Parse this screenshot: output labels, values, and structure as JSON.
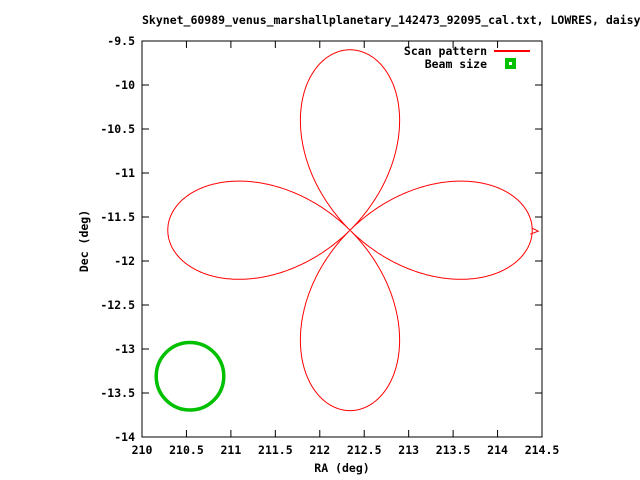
{
  "title": "Skynet_60989_venus_marshallplanetary_142473_92095_cal.txt, LOWRES, daisy",
  "legend": {
    "items": [
      {
        "label": "Scan pattern",
        "sample": "line",
        "color": "#ff0000"
      },
      {
        "label": "Beam size",
        "sample": "square-dot",
        "color": "#00c000"
      }
    ]
  },
  "colors": {
    "frame": "#000000",
    "background": "#ffffff",
    "scan": "#ff0000",
    "beam": "#00c000"
  },
  "chart_data": {
    "type": "line",
    "title": "Skynet_60989_venus_marshallplanetary_142473_92095_cal.txt, LOWRES, daisy",
    "xlabel": "RA (deg)",
    "ylabel": "Dec (deg)",
    "xlim": [
      210,
      214.5
    ],
    "ylim": [
      -14,
      -9.5
    ],
    "xticks": [
      "210",
      "210.5",
      "211",
      "211.5",
      "212",
      "212.5",
      "213",
      "213.5",
      "214",
      "214.5"
    ],
    "yticks": [
      "-9.5",
      "-10",
      "-10.5",
      "-11",
      "-11.5",
      "-12",
      "-12.5",
      "-13",
      "-13.5",
      "-14"
    ],
    "grid": false,
    "legend_position": "top-right-inside",
    "series": [
      {
        "name": "Scan pattern",
        "style": "line",
        "color": "#ff0000",
        "pattern": "rose",
        "num_petals": 4,
        "petal_angles_deg": [
          0,
          90,
          180,
          270
        ],
        "center_ra": 212.34,
        "center_dec": -11.65,
        "petal_radius_deg": 2.05,
        "start_notch": true
      },
      {
        "name": "Beam size",
        "style": "outline",
        "shape": "circle",
        "color": "#00c000",
        "center_ra": 210.54,
        "center_dec": -13.31,
        "radius_deg": 0.38
      }
    ]
  }
}
